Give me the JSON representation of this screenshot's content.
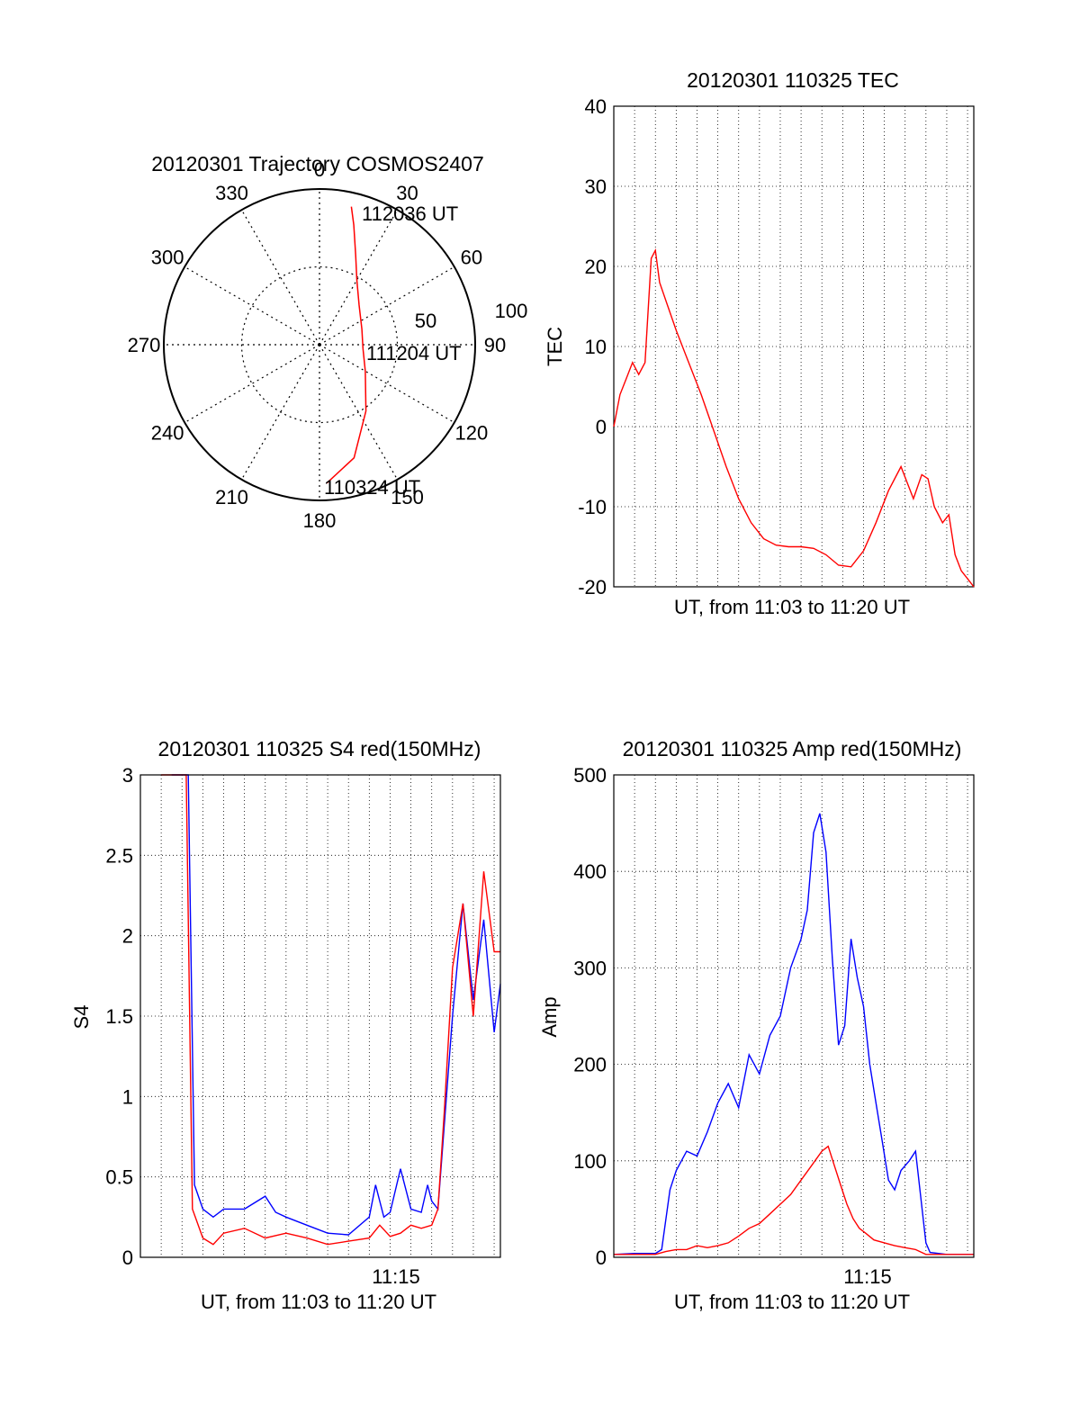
{
  "chart_data": [
    {
      "type": "polar",
      "title": "20120301 Trajectory COSMOS2407",
      "angle_labels": [
        "0",
        "30",
        "60",
        "90",
        "120",
        "150",
        "180",
        "210",
        "240",
        "270",
        "300",
        "330"
      ],
      "radial_ticks": [
        50,
        100
      ],
      "radial_max": 100,
      "start_label": "112036 UT",
      "mid_label": "111204 UT",
      "end_label": "110324 UT",
      "track": [
        {
          "az": 13,
          "r": 91
        },
        {
          "az": 16,
          "r": 80
        },
        {
          "az": 22,
          "r": 62
        },
        {
          "az": 30,
          "r": 48
        },
        {
          "az": 45,
          "r": 36
        },
        {
          "az": 70,
          "r": 29
        },
        {
          "az": 95,
          "r": 28
        },
        {
          "az": 120,
          "r": 34
        },
        {
          "az": 145,
          "r": 52
        },
        {
          "az": 163,
          "r": 76
        },
        {
          "az": 177,
          "r": 89
        }
      ],
      "track_color": "#ff0000"
    },
    {
      "type": "line",
      "title": "20120301 110325 TEC",
      "ylabel": "TEC",
      "xlabel": "UT, from 11:03 to 11:20 UT",
      "xlim": [
        0,
        17.3
      ],
      "ylim": [
        -20,
        40
      ],
      "yticks": [
        "-20",
        "-10",
        "0",
        "10",
        "20",
        "30",
        "40"
      ],
      "series": [
        {
          "name": "TEC",
          "color": "#ff0000",
          "x": [
            0,
            0.3,
            0.6,
            0.9,
            1.2,
            1.5,
            1.8,
            2.0,
            2.2,
            2.6,
            3.0,
            3.6,
            4.2,
            4.8,
            5.4,
            6.0,
            6.6,
            7.2,
            7.8,
            8.4,
            9.0,
            9.6,
            10.2,
            10.8,
            11.4,
            12.0,
            12.6,
            13.2,
            13.8,
            14.4,
            14.8,
            15.1,
            15.4,
            15.8,
            16.1,
            16.4,
            16.7,
            17.0,
            17.3
          ],
          "y": [
            0,
            4,
            6,
            8,
            6.5,
            8,
            21,
            22,
            18,
            15,
            12,
            8,
            4,
            -0.5,
            -5,
            -9,
            -12,
            -14,
            -14.8,
            -15,
            -15,
            -15.2,
            -16,
            -17.3,
            -17.5,
            -15.5,
            -12,
            -8,
            -5,
            -9,
            -6,
            -6.5,
            -10,
            -12,
            -11,
            -16,
            -18,
            -19,
            -20
          ]
        }
      ]
    },
    {
      "type": "line",
      "title": "20120301 110325 S4 red(150MHz)",
      "ylabel": "S4",
      "xlabel": "UT, from 11:03 to 11:20 UT",
      "xlim": [
        0,
        17.3
      ],
      "ylim": [
        0,
        3
      ],
      "yticks": [
        "0",
        "0.5",
        "1",
        "1.5",
        "2",
        "2.5",
        "3"
      ],
      "xtick_labels": [
        {
          "x": 12,
          "label": "11:15"
        }
      ],
      "series": [
        {
          "name": "blue",
          "color": "#0000ff",
          "x": [
            1.5,
            2.3,
            2.6,
            3.0,
            3.5,
            4.0,
            5.0,
            6.0,
            6.5,
            7.0,
            8.0,
            9.0,
            10.0,
            11.0,
            11.3,
            11.7,
            12.0,
            12.5,
            13.0,
            13.5,
            13.8,
            14.0,
            14.3,
            15.0,
            15.5,
            16.0,
            16.5,
            17.0,
            17.3
          ],
          "y": [
            3,
            3,
            0.45,
            0.3,
            0.25,
            0.3,
            0.3,
            0.38,
            0.28,
            0.25,
            0.2,
            0.15,
            0.14,
            0.25,
            0.45,
            0.25,
            0.28,
            0.55,
            0.3,
            0.28,
            0.45,
            0.35,
            0.3,
            1.5,
            2.2,
            1.6,
            2.1,
            1.4,
            1.7
          ]
        },
        {
          "name": "red",
          "color": "#ff0000",
          "x": [
            1.0,
            2.2,
            2.5,
            3.0,
            3.5,
            4.0,
            5.0,
            6.0,
            7.0,
            8.0,
            9.0,
            10.0,
            11.0,
            11.5,
            12.0,
            12.5,
            13.0,
            13.5,
            14.0,
            14.3,
            14.6,
            15.0,
            15.5,
            16.0,
            16.5,
            17.0,
            17.3
          ],
          "y": [
            3,
            3,
            0.3,
            0.12,
            0.08,
            0.15,
            0.18,
            0.12,
            0.15,
            0.12,
            0.08,
            0.1,
            0.12,
            0.2,
            0.13,
            0.15,
            0.2,
            0.18,
            0.2,
            0.3,
            0.9,
            1.8,
            2.2,
            1.5,
            2.4,
            1.9,
            1.9
          ]
        }
      ]
    },
    {
      "type": "line",
      "title": "20120301 110325 Amp red(150MHz)",
      "ylabel": "Amp",
      "xlabel": "UT, from 11:03 to 11:20 UT",
      "xlim": [
        0,
        17.3
      ],
      "ylim": [
        0,
        500
      ],
      "yticks": [
        "0",
        "100",
        "200",
        "300",
        "400",
        "500"
      ],
      "xtick_labels": [
        {
          "x": 12,
          "label": "11:15"
        }
      ],
      "series": [
        {
          "name": "blue",
          "color": "#0000ff",
          "x": [
            0,
            1.0,
            2.0,
            2.3,
            2.7,
            3.0,
            3.5,
            4.0,
            4.5,
            5.0,
            5.5,
            6.0,
            6.5,
            7.0,
            7.5,
            8.0,
            8.5,
            9.0,
            9.3,
            9.6,
            9.9,
            10.2,
            10.5,
            10.8,
            11.1,
            11.4,
            11.7,
            12.0,
            12.3,
            12.6,
            12.9,
            13.2,
            13.5,
            13.8,
            14.2,
            14.5,
            15.0,
            15.2,
            16.0,
            17.3
          ],
          "y": [
            3,
            4,
            4,
            8,
            70,
            90,
            110,
            105,
            130,
            160,
            180,
            155,
            210,
            190,
            230,
            250,
            300,
            330,
            360,
            440,
            460,
            420,
            310,
            220,
            240,
            330,
            290,
            260,
            200,
            160,
            120,
            80,
            70,
            90,
            100,
            110,
            15,
            5,
            3,
            3
          ]
        },
        {
          "name": "red",
          "color": "#ff0000",
          "x": [
            0,
            2.0,
            2.5,
            3.0,
            3.5,
            4.0,
            4.5,
            5.0,
            5.5,
            6.0,
            6.5,
            7.0,
            7.5,
            8.0,
            8.5,
            9.0,
            9.5,
            10.0,
            10.3,
            10.6,
            10.9,
            11.2,
            11.5,
            11.8,
            12.1,
            12.5,
            13.0,
            13.5,
            14.0,
            14.5,
            15.0,
            17.3
          ],
          "y": [
            3,
            3,
            6,
            8,
            8,
            12,
            10,
            12,
            15,
            22,
            30,
            35,
            45,
            55,
            65,
            80,
            95,
            110,
            115,
            95,
            75,
            55,
            40,
            30,
            25,
            18,
            15,
            12,
            10,
            8,
            3,
            3
          ]
        }
      ]
    }
  ]
}
